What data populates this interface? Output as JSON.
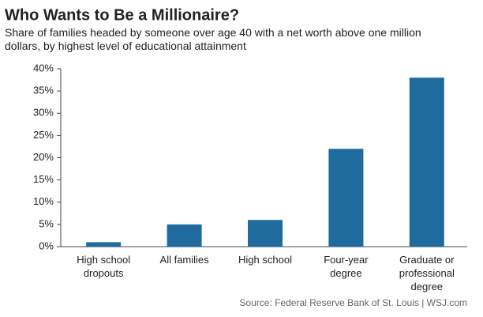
{
  "chart_data": {
    "type": "bar",
    "title": "Who Wants to Be a Millionaire?",
    "subtitle": "Share of families headed by someone over age 40 with a net worth above one million\ndollars, by highest level of educational attainment",
    "categories": [
      "High school\ndropouts",
      "All families",
      "High school",
      "Four-year\ndegree",
      "Graduate or\nprofessional\ndegree"
    ],
    "values": [
      1,
      5,
      6,
      22,
      38
    ],
    "color": "#1f6b9e",
    "ylim": [
      0,
      40
    ],
    "yticks": [
      {
        "value": 0,
        "label": "0%"
      },
      {
        "value": 5,
        "label": "5%"
      },
      {
        "value": 10,
        "label": "10%"
      },
      {
        "value": 15,
        "label": "15%"
      },
      {
        "value": 20,
        "label": "20%"
      },
      {
        "value": 25,
        "label": "25%"
      },
      {
        "value": 30,
        "label": "30%"
      },
      {
        "value": 35,
        "label": "35%"
      },
      {
        "value": 40,
        "label": "40%"
      }
    ],
    "source": "Source: Federal Reserve Bank of St. Louis  |  WSJ.com"
  }
}
